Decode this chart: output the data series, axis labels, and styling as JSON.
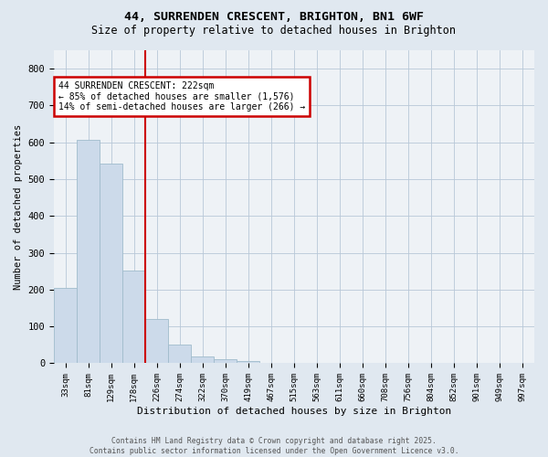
{
  "title_line1": "44, SURRENDEN CRESCENT, BRIGHTON, BN1 6WF",
  "title_line2": "Size of property relative to detached houses in Brighton",
  "xlabel": "Distribution of detached houses by size in Brighton",
  "ylabel": "Number of detached properties",
  "bar_labels": [
    "33sqm",
    "81sqm",
    "129sqm",
    "178sqm",
    "226sqm",
    "274sqm",
    "322sqm",
    "370sqm",
    "419sqm",
    "467sqm",
    "515sqm",
    "563sqm",
    "611sqm",
    "660sqm",
    "708sqm",
    "756sqm",
    "804sqm",
    "852sqm",
    "901sqm",
    "949sqm",
    "997sqm"
  ],
  "bar_values": [
    204,
    607,
    541,
    252,
    120,
    52,
    18,
    10,
    5,
    0,
    0,
    0,
    0,
    0,
    0,
    0,
    0,
    0,
    0,
    0,
    0
  ],
  "bar_color": "#ccdaea",
  "bar_edge_color": "#a0bccc",
  "vline_color": "#cc0000",
  "annotation_title": "44 SURRENDEN CRESCENT: 222sqm",
  "annotation_line2": "← 85% of detached houses are smaller (1,576)",
  "annotation_line3": "14% of semi-detached houses are larger (266) →",
  "annotation_box_color": "#cc0000",
  "annotation_bg": "#ffffff",
  "ylim": [
    0,
    850
  ],
  "yticks": [
    0,
    100,
    200,
    300,
    400,
    500,
    600,
    700,
    800
  ],
  "bg_color": "#e0e8f0",
  "plot_bg_color": "#eef2f6",
  "footer_line1": "Contains HM Land Registry data © Crown copyright and database right 2025.",
  "footer_line2": "Contains public sector information licensed under the Open Government Licence v3.0."
}
